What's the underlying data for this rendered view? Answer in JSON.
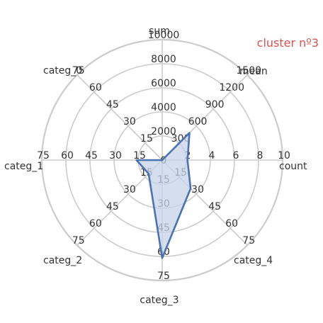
{
  "chart_data": {
    "type": "radar",
    "title": "cluster nº3",
    "title_color": "#d9534f",
    "line_color": "#4c72b0",
    "fill_color": "#c6d3e8",
    "grid": true,
    "axes": [
      {
        "name": "count",
        "ticks": [
          "2",
          "4",
          "6",
          "8",
          "10"
        ],
        "max": 10,
        "value": 2.1
      },
      {
        "name": "mean",
        "ticks": [
          "300",
          "600",
          "900",
          "1200",
          "1500"
        ],
        "max": 1500,
        "value": 480
      },
      {
        "name": "sum",
        "ticks": [
          "2000",
          "4000",
          "6000",
          "8000",
          "10000"
        ],
        "max": 10000,
        "value": 0
      },
      {
        "name": "categ_0",
        "ticks": [
          "15",
          "30",
          "45",
          "60",
          "75"
        ],
        "max": 75,
        "value": 0
      },
      {
        "name": "categ_1",
        "ticks": [
          "15",
          "30",
          "45",
          "60",
          "75"
        ],
        "max": 75,
        "value": 16
      },
      {
        "name": "categ_2",
        "ticks": [
          "15",
          "30",
          "45",
          "60",
          "75"
        ],
        "max": 75,
        "value": 12
      },
      {
        "name": "categ_3",
        "ticks": [
          "15",
          "30",
          "45",
          "60",
          "75"
        ],
        "max": 75,
        "value": 61
      },
      {
        "name": "categ_4",
        "ticks": [
          "15",
          "30",
          "45",
          "60",
          "75"
        ],
        "max": 75,
        "value": 25
      }
    ],
    "center_label": "0"
  }
}
